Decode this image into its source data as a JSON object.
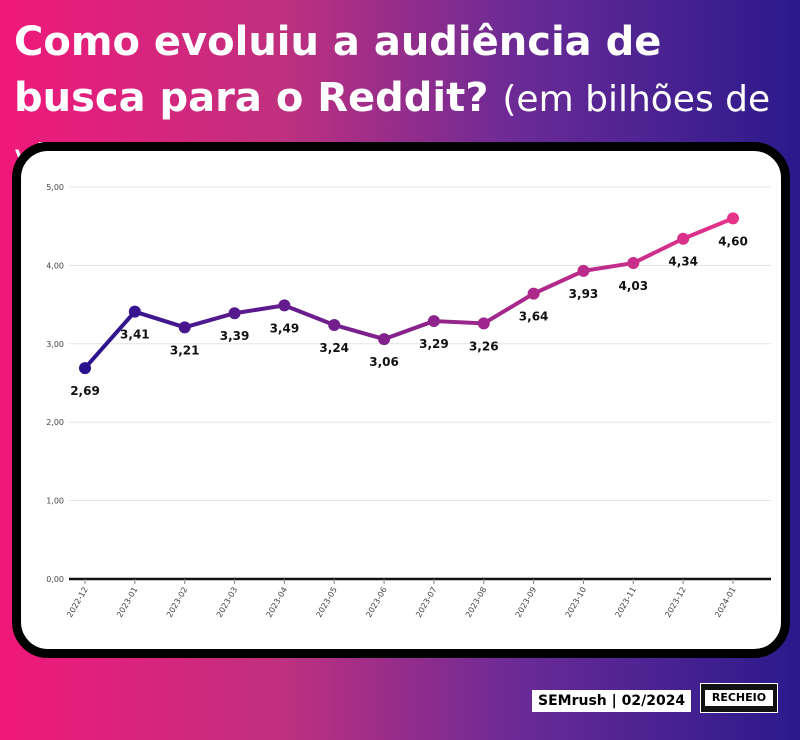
{
  "header": {
    "title_main": "Como evoluiu a audiência de busca para o Reddit?",
    "title_sub": "(em bilhões de visitas)"
  },
  "footer": {
    "source": "SEMrush | 02/2024",
    "brand": "RECHEIO"
  },
  "colors": {
    "line_start": "#2a128e",
    "line_end": "#e6338a",
    "gradient_left": "#f0187a",
    "gradient_right": "#2a1a8c"
  },
  "chart_data": {
    "type": "line",
    "title": "",
    "xlabel": "",
    "ylabel": "",
    "ylim": [
      0,
      5
    ],
    "y_ticks": [
      "0,00",
      "1,00",
      "2,00",
      "3,00",
      "4,00",
      "5,00"
    ],
    "grid": true,
    "categories": [
      "2022-12",
      "2023-01",
      "2023-02",
      "2023-03",
      "2023-04",
      "2023-05",
      "2023-06",
      "2023-07",
      "2023-08",
      "2023-09",
      "2023-10",
      "2023-11",
      "2023-12",
      "2024-01"
    ],
    "values": [
      2.69,
      3.41,
      3.21,
      3.39,
      3.49,
      3.24,
      3.06,
      3.29,
      3.26,
      3.64,
      3.93,
      4.03,
      4.34,
      4.6
    ],
    "labels": [
      "2,69",
      "3,41",
      "3,21",
      "3,39",
      "3,49",
      "3,24",
      "3,06",
      "3,29",
      "3,26",
      "3,64",
      "3,93",
      "4,03",
      "4,34",
      "4,60"
    ],
    "label_position": [
      "below",
      "below",
      "below",
      "below",
      "below",
      "below",
      "below",
      "below",
      "below",
      "below",
      "below",
      "below",
      "below",
      "below"
    ]
  }
}
